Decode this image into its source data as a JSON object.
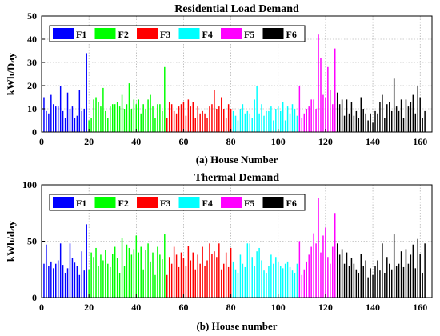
{
  "chart_data": [
    {
      "type": "bar",
      "title": "Residential Load Demand",
      "xlabel": "(a) House Number",
      "ylabel": "kWh/Day",
      "xlim": [
        0,
        165
      ],
      "ylim": [
        0,
        50
      ],
      "xticks": [
        0,
        20,
        40,
        60,
        80,
        100,
        120,
        140,
        160
      ],
      "yticks": [
        0,
        10,
        20,
        30,
        40,
        50
      ],
      "grid": true,
      "legend_position": "top",
      "series": [
        {
          "name": "F1",
          "color": "#0000ff",
          "x_start": 1,
          "values": [
            15,
            9,
            8,
            16,
            12,
            11,
            11,
            20,
            9,
            6,
            17,
            10,
            11,
            6,
            7,
            18,
            9,
            10,
            34
          ]
        },
        {
          "name": "F2",
          "color": "#00ff00",
          "x_start": 20,
          "values": [
            5,
            6,
            14,
            15,
            13,
            11,
            19,
            9,
            6,
            11,
            12,
            12,
            13,
            11,
            16,
            10,
            12,
            21,
            10,
            14,
            12,
            14,
            8,
            12,
            10,
            14,
            16,
            11,
            6,
            12,
            12,
            9,
            28
          ]
        },
        {
          "name": "F3",
          "color": "#ff0000",
          "x_start": 53,
          "values": [
            6,
            13,
            12,
            9,
            8,
            11,
            12,
            13,
            7,
            14,
            11,
            13,
            6,
            11,
            8,
            9,
            8,
            6,
            11,
            12,
            18,
            10,
            11,
            15,
            10,
            6,
            12,
            10
          ]
        },
        {
          "name": "F4",
          "color": "#00ffff",
          "x_start": 81,
          "values": [
            9,
            7,
            5,
            10,
            12,
            8,
            9,
            8,
            6,
            14,
            20,
            8,
            12,
            7,
            9,
            9,
            11,
            5,
            10,
            11,
            9,
            13,
            5,
            11,
            8,
            12,
            10,
            7
          ]
        },
        {
          "name": "F5",
          "color": "#ff00ff",
          "x_start": 109,
          "values": [
            20,
            6,
            8,
            10,
            11,
            14,
            14,
            10,
            42,
            32,
            16,
            15,
            28,
            18,
            12,
            36
          ]
        },
        {
          "name": "F6",
          "color": "#000000",
          "x_start": 125,
          "values": [
            17,
            12,
            14,
            7,
            14,
            8,
            13,
            7,
            9,
            6,
            15,
            10,
            8,
            5,
            8,
            4,
            9,
            8,
            13,
            16,
            6,
            12,
            13,
            9,
            23,
            11,
            9,
            14,
            6,
            14,
            11,
            13,
            16,
            8,
            20,
            15,
            6,
            9
          ]
        }
      ]
    },
    {
      "type": "bar",
      "title": "Thermal Demand",
      "xlabel": "(b) House number",
      "ylabel": "kWh/day",
      "xlim": [
        0,
        165
      ],
      "ylim": [
        0,
        100
      ],
      "xticks": [
        0,
        20,
        40,
        60,
        80,
        100,
        120,
        140,
        160
      ],
      "yticks": [
        0,
        50,
        100
      ],
      "grid": true,
      "legend_position": "top",
      "series": [
        {
          "name": "F1",
          "color": "#0000ff",
          "x_start": 1,
          "values": [
            30,
            47,
            28,
            32,
            26,
            30,
            33,
            48,
            29,
            22,
            26,
            48,
            35,
            31,
            28,
            20,
            41,
            24,
            65
          ]
        },
        {
          "name": "F2",
          "color": "#00ff00",
          "x_start": 20,
          "values": [
            25,
            40,
            36,
            44,
            28,
            38,
            33,
            42,
            30,
            27,
            39,
            45,
            35,
            22,
            53,
            28,
            47,
            44,
            38,
            43,
            55,
            40,
            45,
            25,
            42,
            48,
            32,
            40,
            20,
            45,
            38,
            34,
            56
          ]
        },
        {
          "name": "F3",
          "color": "#ff0000",
          "x_start": 53,
          "values": [
            20,
            36,
            30,
            45,
            38,
            27,
            40,
            35,
            28,
            46,
            33,
            40,
            25,
            38,
            30,
            45,
            28,
            33,
            48,
            39,
            41,
            36,
            48,
            25,
            30,
            40,
            27,
            44
          ]
        },
        {
          "name": "F4",
          "color": "#00ffff",
          "x_start": 81,
          "values": [
            32,
            25,
            22,
            38,
            30,
            27,
            48,
            48,
            36,
            28,
            41,
            44,
            33,
            24,
            22,
            28,
            38,
            30,
            36,
            32,
            28,
            26,
            30,
            32,
            27,
            24,
            22,
            30
          ]
        },
        {
          "name": "F5",
          "color": "#ff00ff",
          "x_start": 109,
          "values": [
            50,
            20,
            25,
            32,
            38,
            45,
            57,
            48,
            88,
            40,
            55,
            62,
            36,
            30,
            45,
            75
          ]
        },
        {
          "name": "F6",
          "color": "#000000",
          "x_start": 125,
          "values": [
            48,
            38,
            43,
            30,
            40,
            28,
            35,
            30,
            25,
            22,
            39,
            28,
            33,
            18,
            26,
            20,
            28,
            33,
            24,
            48,
            22,
            36,
            30,
            25,
            56,
            28,
            30,
            41,
            27,
            43,
            30,
            38,
            47,
            26,
            52,
            39,
            22,
            48
          ]
        }
      ]
    }
  ]
}
